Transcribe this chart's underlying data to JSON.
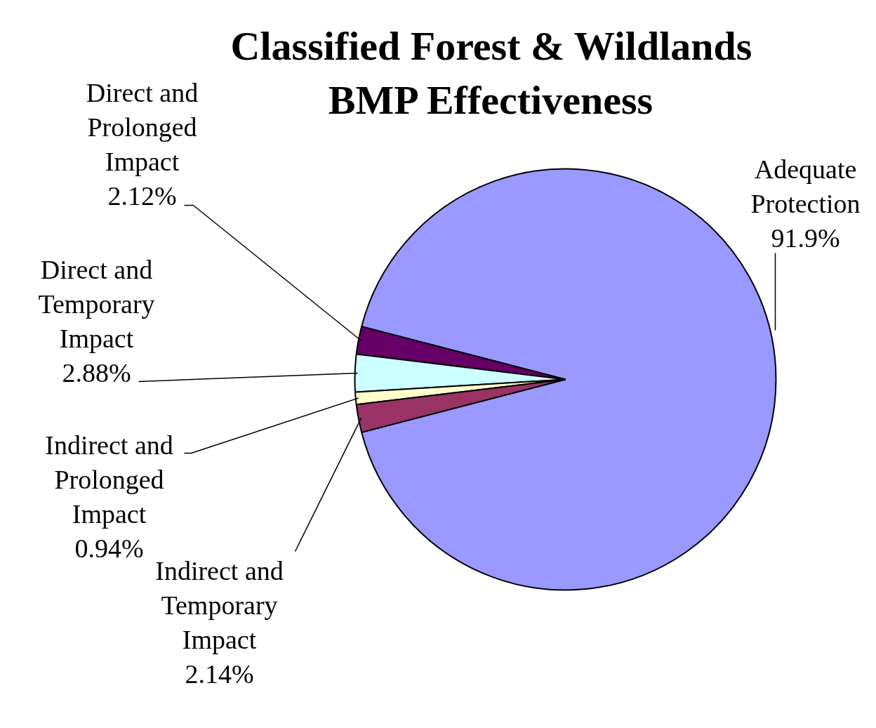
{
  "chart_data": {
    "type": "pie",
    "title": "Classified Forest & Wildlands BMP Effectiveness",
    "categories": [
      "Adequate Protection",
      "Direct and Prolonged Impact",
      "Direct and Temporary Impact",
      "Indirect and Prolonged Impact",
      "Indirect and Temporary Impact"
    ],
    "values": [
      91.9,
      2.12,
      2.88,
      0.94,
      2.14
    ],
    "value_labels": [
      "91.9%",
      "2.12%",
      "2.88%",
      "0.94%",
      "2.14%"
    ],
    "colors": [
      "#9999ff",
      "#660066",
      "#ccffff",
      "#ffffcc",
      "#993366"
    ]
  }
}
